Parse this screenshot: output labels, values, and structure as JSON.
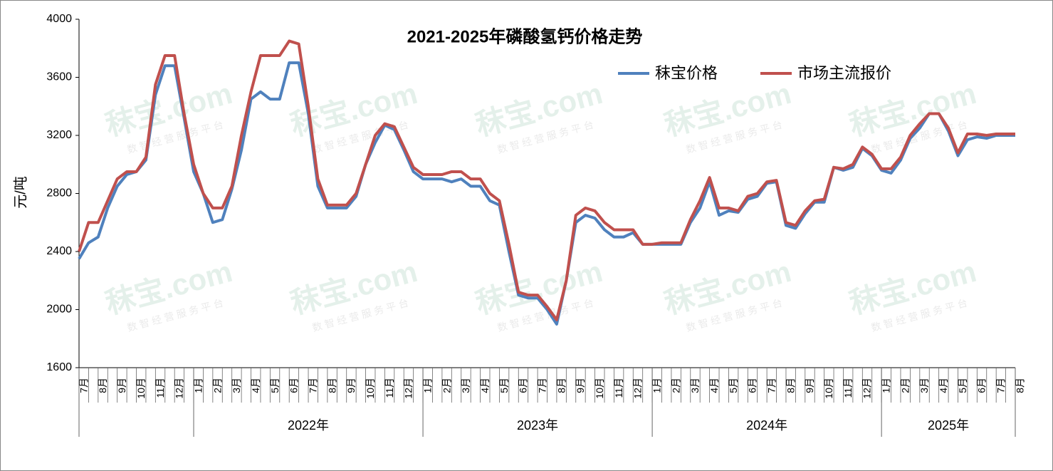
{
  "chart_data": {
    "type": "line",
    "title": "2021-2025年磷酸氢钙价格走势",
    "y_label": "元/吨",
    "watermark": [
      "秣宝.com",
      "数 智 经 营 服 务 平 台"
    ],
    "categories": [
      "7月",
      null,
      "8月",
      null,
      "9月",
      null,
      "10月",
      null,
      "11月",
      null,
      "12月",
      null,
      "1月",
      null,
      "2月",
      null,
      "3月",
      null,
      "4月",
      null,
      "5月",
      null,
      "6月",
      null,
      "7月",
      null,
      "8月",
      null,
      "9月",
      null,
      "10月",
      null,
      "11月",
      null,
      "12月",
      null,
      "1月",
      null,
      "2月",
      null,
      "3月",
      null,
      "4月",
      null,
      "5月",
      null,
      "6月",
      null,
      "7月",
      null,
      "8月",
      null,
      "9月",
      null,
      "10月",
      null,
      "11月",
      null,
      "12月",
      null,
      "1月",
      null,
      "2月",
      null,
      "3月",
      null,
      "4月",
      null,
      "5月",
      null,
      "6月",
      null,
      "7月",
      null,
      "8月",
      null,
      "9月",
      null,
      "10月",
      null,
      "11月",
      null,
      "12月",
      null,
      "1月",
      null,
      "2月",
      null,
      "3月",
      null,
      "4月",
      null,
      "5月",
      null,
      "6月",
      null,
      "7月",
      null,
      "8月"
    ],
    "year_labels": [
      "2022年",
      "2023年",
      "2024年",
      "2025年"
    ],
    "series": [
      {
        "name": "秣宝价格",
        "color": "#4f81bd",
        "values": [
          2350,
          2460,
          2500,
          2700,
          2850,
          2930,
          2950,
          3030,
          3480,
          3680,
          3680,
          3320,
          2950,
          2800,
          2600,
          2620,
          2830,
          3100,
          3450,
          3500,
          3450,
          3450,
          3700,
          3700,
          3350,
          2850,
          2700,
          2700,
          2700,
          2780,
          3000,
          3150,
          3270,
          3240,
          3100,
          2950,
          2900,
          2900,
          2900,
          2880,
          2900,
          2850,
          2850,
          2750,
          2720,
          2400,
          2100,
          2080,
          2080,
          2000,
          1900,
          2200,
          2600,
          2650,
          2630,
          2550,
          2500,
          2500,
          2530,
          2450,
          2450,
          2450,
          2450,
          2450,
          2600,
          2700,
          2880,
          2650,
          2680,
          2670,
          2760,
          2780,
          2870,
          2880,
          2580,
          2560,
          2660,
          2740,
          2740,
          2980,
          2960,
          2980,
          3110,
          3060,
          2960,
          2940,
          3030,
          3180,
          3250,
          3350,
          3350,
          3230,
          3060,
          3170,
          3190,
          3180,
          3200,
          3200,
          3200
        ]
      },
      {
        "name": "市场主流报价",
        "color": "#c0504d",
        "values": [
          2400,
          2600,
          2600,
          2750,
          2900,
          2950,
          2950,
          3050,
          3550,
          3750,
          3750,
          3350,
          3000,
          2800,
          2700,
          2700,
          2850,
          3200,
          3500,
          3750,
          3750,
          3750,
          3850,
          3830,
          3400,
          2900,
          2720,
          2720,
          2720,
          2800,
          3000,
          3200,
          3280,
          3260,
          3120,
          2980,
          2930,
          2930,
          2930,
          2950,
          2950,
          2900,
          2900,
          2800,
          2750,
          2450,
          2120,
          2100,
          2100,
          2020,
          1930,
          2200,
          2650,
          2700,
          2680,
          2600,
          2550,
          2550,
          2550,
          2450,
          2450,
          2460,
          2460,
          2460,
          2620,
          2750,
          2910,
          2700,
          2700,
          2680,
          2780,
          2800,
          2880,
          2890,
          2600,
          2580,
          2680,
          2750,
          2760,
          2980,
          2970,
          3000,
          3120,
          3070,
          2970,
          2970,
          3050,
          3200,
          3280,
          3350,
          3350,
          3250,
          3080,
          3210,
          3210,
          3200,
          3210,
          3210,
          3210
        ]
      }
    ],
    "ylim": [
      1600,
      4000
    ],
    "yticks": [
      1600,
      2000,
      2400,
      2800,
      3200,
      3600,
      4000
    ],
    "legend": "upper right"
  }
}
